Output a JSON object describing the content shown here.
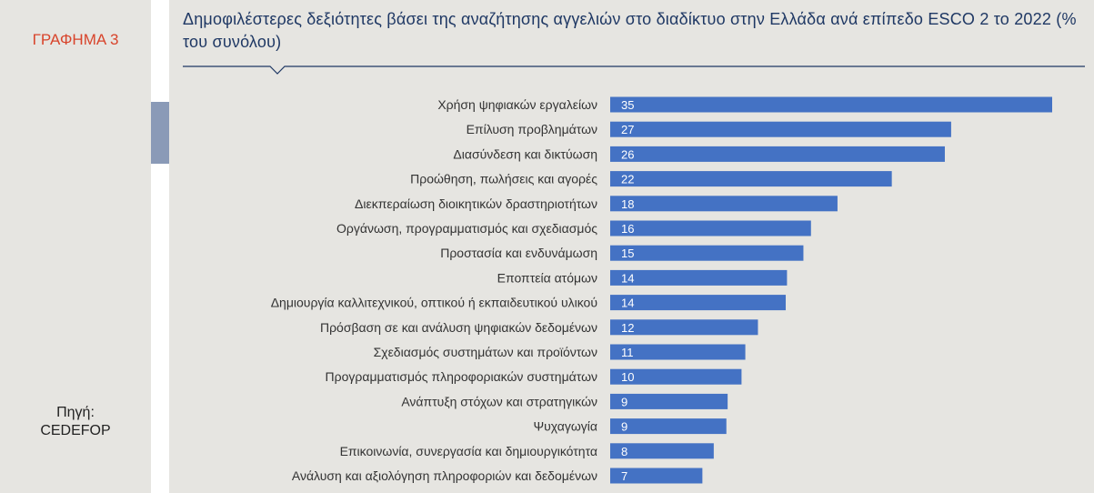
{
  "figure_label": "ΓΡΑΦΗΜΑ 3",
  "source": {
    "label": "Πηγή:",
    "name": "CEDEFOP"
  },
  "colors": {
    "bar": "#4472c4",
    "title": "#1f3864",
    "figure_label": "#d8442b",
    "panel": "#e6e5e1"
  },
  "chart_data": {
    "type": "bar",
    "orientation": "horizontal",
    "title": "Δημοφιλέστερες δεξιότητες βάσει της αναζήτησης αγγελιών στο διαδίκτυο στην Ελλάδα ανά επίπεδο ESCO 2 το 2022 (% του συνόλου)",
    "xlabel": "",
    "ylabel": "",
    "grid": false,
    "legend": "none",
    "xlim": [
      0,
      35
    ],
    "categories": [
      "Χρήση ψηφιακών εργαλείων",
      "Επίλυση προβλημάτων",
      "Διασύνδεση και δικτύωση",
      "Προώθηση, πωλήσεις και αγορές",
      "Διεκπεραίωση διοικητικών δραστηριοτήτων",
      "Οργάνωση, προγραμματισμός και σχεδιασμός",
      "Προστασία και ενδυνάμωση",
      "Εποπτεία ατόμων",
      "Δημιουργία καλλιτεχνικού, οπτικού ή εκπαιδευτικού υλικού",
      "Πρόσβαση σε και ανάλυση ψηφιακών δεδομένων",
      "Σχεδιασμός συστημάτων και προϊόντων",
      "Προγραμματισμός πληροφοριακών συστημάτων",
      "Ανάπτυξη στόχων και στρατηγικών",
      "Ψυχαγωγία",
      "Επικοινωνία, συνεργασία και δημιουργικότητα",
      "Ανάλυση και αξιολόγηση πληροφοριών και δεδομένων"
    ],
    "values": [
      35.0,
      27.0,
      26.5,
      22.3,
      18.0,
      15.9,
      15.3,
      14.0,
      13.9,
      11.7,
      10.7,
      10.4,
      9.3,
      9.2,
      8.2,
      7.3
    ],
    "value_labels": [
      "35",
      "27",
      "26",
      "22",
      "18",
      "16",
      "15",
      "14",
      "14",
      "12",
      "11",
      "10",
      "9",
      "9",
      "8",
      "7"
    ]
  }
}
